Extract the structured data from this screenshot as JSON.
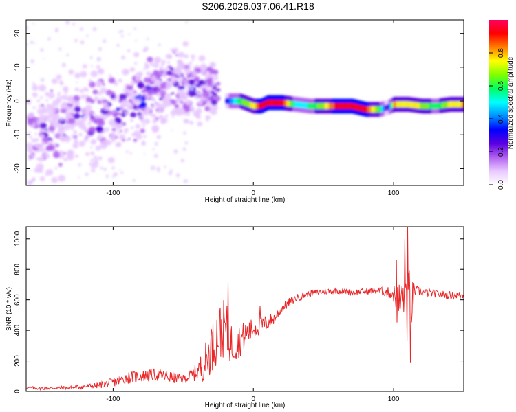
{
  "title": "S206.2026.037.06.41.R18",
  "chart_data": [
    {
      "type": "heatmap",
      "xlabel": "Height of straight line (km)",
      "ylabel": "Frequency (Hz)",
      "xlim": [
        -162,
        150
      ],
      "ylim": [
        -25,
        24
      ],
      "xticks": [
        -100,
        0,
        100
      ],
      "yticks": [
        -20,
        -10,
        0,
        10,
        20
      ],
      "colorbar": {
        "label": "Normalized spectral amplitude",
        "range": [
          0,
          1
        ],
        "ticks": [
          0.0,
          0.2,
          0.4,
          0.6,
          0.8
        ],
        "colors": [
          "#ffffff",
          "#e8c8ff",
          "#b060f0",
          "#5a00e0",
          "#0000ff",
          "#0090ff",
          "#00ffff",
          "#00ff60",
          "#80ff00",
          "#ffff00",
          "#ff8000",
          "#ff0000",
          "#ff0060"
        ]
      },
      "ridge": {
        "x": [
          -20,
          -10,
          0,
          5,
          10,
          20,
          30,
          40,
          50,
          60,
          70,
          80,
          90,
          95,
          100,
          110,
          120,
          130,
          140,
          150
        ],
        "freq": [
          0,
          0,
          -1.5,
          -1.5,
          -0.5,
          -0.5,
          -1,
          -1.5,
          -1.5,
          -1.5,
          -1.5,
          -2.5,
          -2.5,
          -2,
          -1,
          -1,
          -1.5,
          -1.5,
          -1,
          -1
        ],
        "amplitude": [
          0.3,
          0.6,
          0.75,
          0.95,
          0.9,
          0.95,
          0.5,
          0.55,
          0.7,
          0.95,
          0.9,
          0.9,
          0.6,
          0.2,
          0.8,
          0.75,
          0.7,
          0.55,
          0.75,
          0.8
        ]
      },
      "scatter_blobs": {
        "freq_center_vs_x": {
          "x": [
            -160,
            -120,
            -80,
            -60,
            -40,
            -25
          ],
          "freq": [
            -10,
            -6,
            0,
            6,
            4,
            2
          ]
        },
        "freq_spread": [
          7,
          7,
          6,
          5,
          5,
          4
        ],
        "peak_amplitude": [
          0.2,
          0.3,
          0.35,
          0.3,
          0.3,
          0.3
        ]
      }
    },
    {
      "type": "line",
      "xlabel": "Height of straight line (km)",
      "ylabel": "SNR (10 * v/v)",
      "xlim": [
        -162,
        150
      ],
      "ylim": [
        0,
        1080
      ],
      "xticks": [
        -100,
        0,
        100
      ],
      "yticks": [
        0,
        200,
        400,
        600,
        800,
        1000
      ],
      "series": [
        {
          "name": "SNR",
          "color": "#e8282a",
          "x": [
            -162,
            -150,
            -130,
            -110,
            -100,
            -90,
            -80,
            -70,
            -60,
            -50,
            -45,
            -40,
            -35,
            -30,
            -25,
            -20,
            -15,
            -10,
            -5,
            0,
            5,
            10,
            15,
            20,
            25,
            30,
            40,
            50,
            60,
            70,
            80,
            90,
            95,
            100,
            103,
            106,
            108,
            110,
            112,
            115,
            120,
            130,
            140,
            150
          ],
          "y": [
            25,
            20,
            25,
            40,
            60,
            90,
            100,
            110,
            95,
            80,
            100,
            130,
            180,
            280,
            380,
            420,
            300,
            330,
            380,
            410,
            430,
            450,
            480,
            540,
            580,
            610,
            640,
            655,
            660,
            650,
            655,
            660,
            650,
            640,
            560,
            600,
            700,
            560,
            560,
            660,
            650,
            640,
            630,
            630
          ],
          "noise": [
            10,
            10,
            12,
            20,
            30,
            40,
            40,
            40,
            40,
            30,
            40,
            60,
            120,
            160,
            190,
            190,
            130,
            110,
            90,
            70,
            60,
            50,
            40,
            35,
            30,
            25,
            20,
            20,
            20,
            20,
            20,
            25,
            30,
            60,
            160,
            150,
            220,
            300,
            220,
            40,
            25,
            25,
            25,
            25
          ]
        }
      ],
      "peaks": {
        "x": [
          -30,
          -18,
          5,
          102,
          106,
          108,
          110,
          112
        ],
        "y": [
          410,
          720,
          560,
          860,
          690,
          1000,
          1080,
          190
        ]
      }
    }
  ]
}
